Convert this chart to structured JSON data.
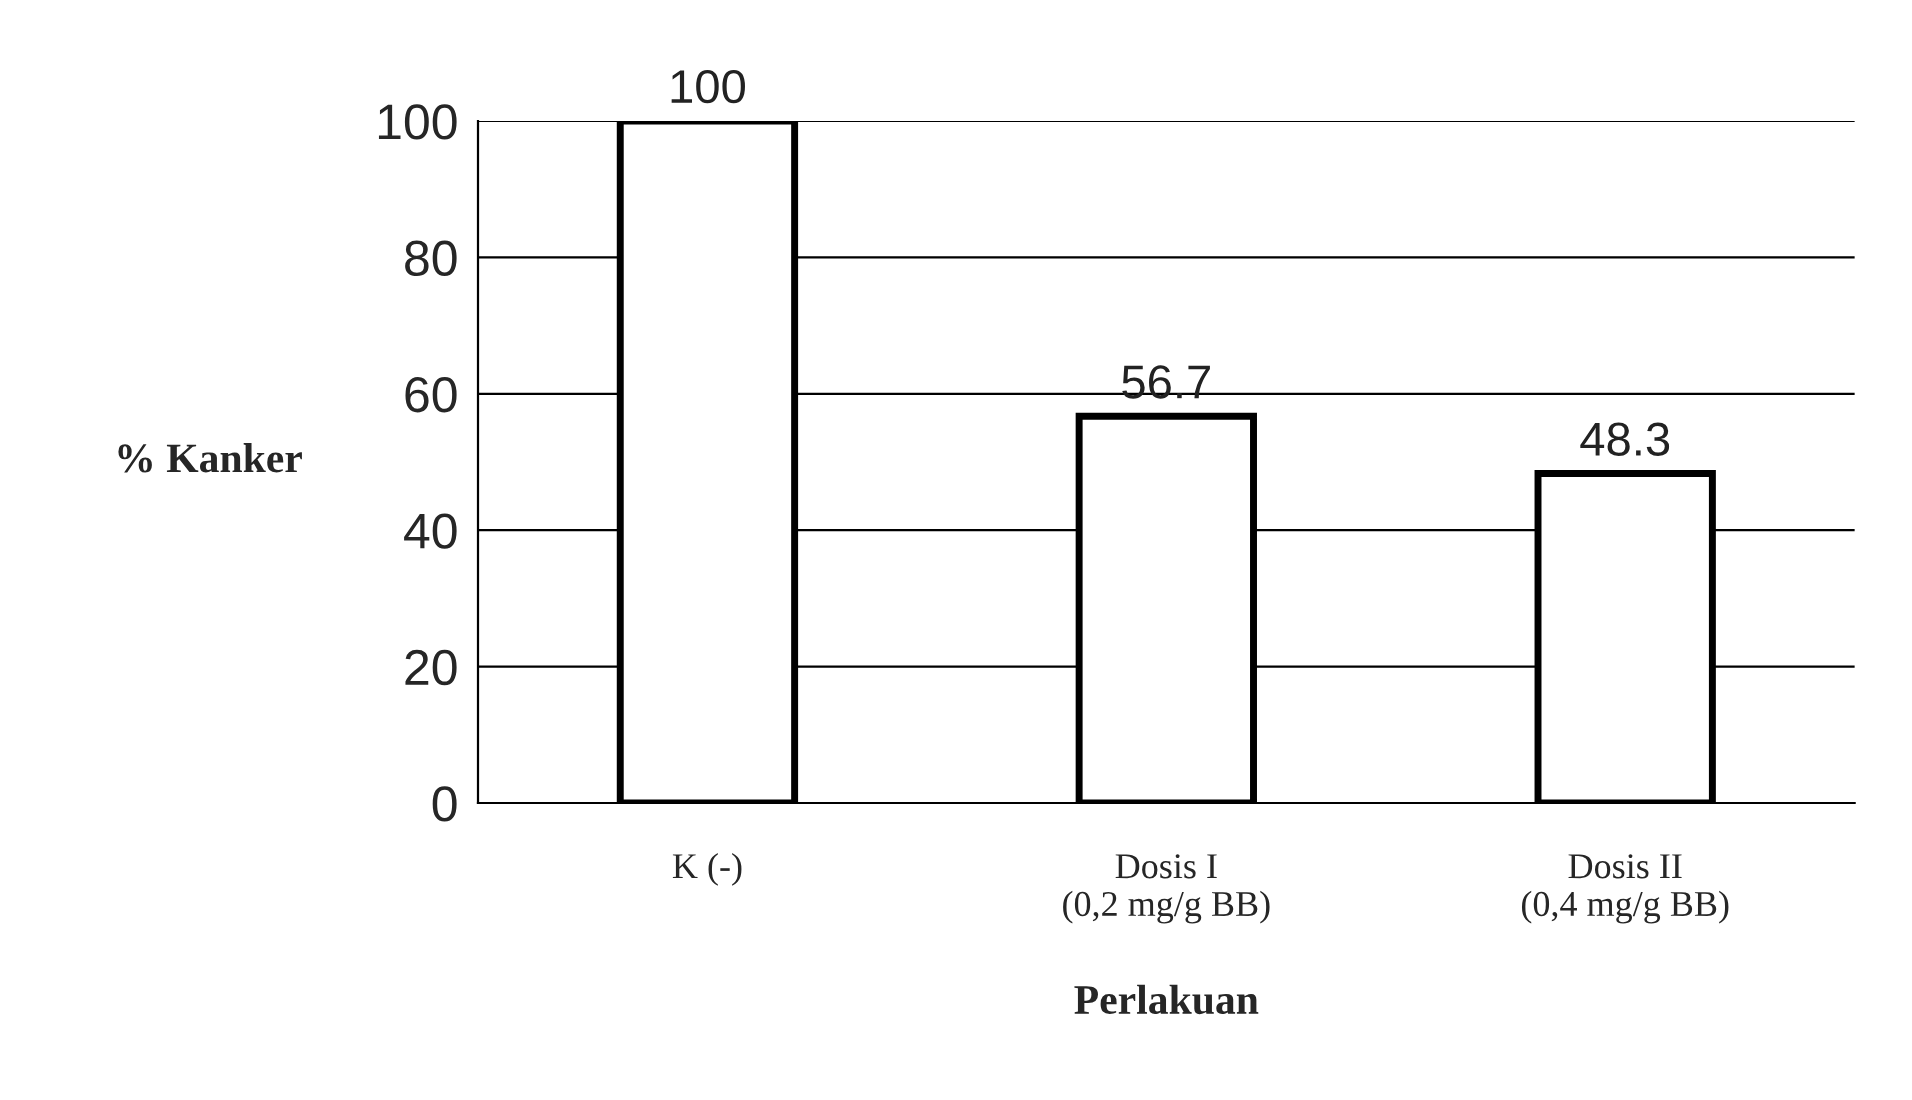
{
  "chart_data": {
    "type": "bar",
    "xlabel": "Perlakuan",
    "ylabel": "% Kanker",
    "categories": [
      "K (-)",
      "Dosis I\n(0,2 mg/g BB)",
      "Dosis II\n(0,4 mg/g BB)"
    ],
    "values": [
      100,
      56.7,
      48.3
    ],
    "color": "#ffffff",
    "data_labels": true,
    "ylim": [
      0,
      100
    ],
    "yticks": [
      0,
      20,
      40,
      60,
      80,
      100
    ],
    "grid": "y"
  }
}
